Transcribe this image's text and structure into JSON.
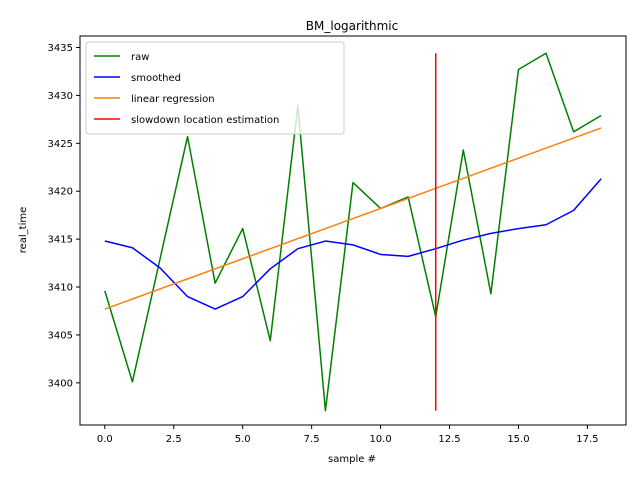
{
  "chart_data": {
    "type": "line",
    "title": "BM_logarithmic",
    "xlabel": "sample #",
    "ylabel": "real_time",
    "xlim": [
      -0.9,
      18.9
    ],
    "ylim": [
      3395.6,
      3436.2
    ],
    "xticks": [
      0.0,
      2.5,
      5.0,
      7.5,
      10.0,
      12.5,
      15.0,
      17.5
    ],
    "xtick_labels": [
      "0.0",
      "2.5",
      "5.0",
      "7.5",
      "10.0",
      "12.5",
      "15.0",
      "17.5"
    ],
    "yticks": [
      3400,
      3405,
      3410,
      3415,
      3420,
      3425,
      3430,
      3435
    ],
    "ytick_labels": [
      "3400",
      "3405",
      "3410",
      "3415",
      "3420",
      "3425",
      "3430",
      "3435"
    ],
    "grid": false,
    "legend_position": "top-left",
    "x": [
      0,
      1,
      2,
      3,
      4,
      5,
      6,
      7,
      8,
      9,
      10,
      11,
      12,
      13,
      14,
      15,
      16,
      17,
      18
    ],
    "series": [
      {
        "name": "raw",
        "color": "#008000",
        "values": [
          3409.6,
          3400.1,
          3412.9,
          3425.7,
          3410.4,
          3416.1,
          3404.4,
          3428.9,
          3397.1,
          3420.9,
          3418.2,
          3419.4,
          3406.9,
          3424.3,
          3409.3,
          3432.7,
          3434.4,
          3426.2,
          3427.9
        ]
      },
      {
        "name": "smoothed",
        "color": "#0000ff",
        "values": [
          3414.8,
          3414.1,
          3412.0,
          3409.0,
          3407.7,
          3409.0,
          3411.9,
          3414.0,
          3414.8,
          3414.4,
          3413.4,
          3413.2,
          3414.0,
          3414.9,
          3415.6,
          3416.1,
          3416.5,
          3418.0,
          3421.3
        ]
      },
      {
        "name": "linear regression",
        "color": "#ff7f0e",
        "values": [
          3407.7,
          3408.75,
          3409.8,
          3410.85,
          3411.9,
          3412.95,
          3414.0,
          3415.05,
          3416.1,
          3417.15,
          3418.2,
          3419.25,
          3420.3,
          3421.35,
          3422.4,
          3423.45,
          3424.5,
          3425.55,
          3426.6
        ]
      },
      {
        "name": "slowdown location estimation",
        "color": "#ff0000",
        "x_vertical": 12,
        "y_range": [
          3397.1,
          3434.4
        ]
      }
    ]
  }
}
